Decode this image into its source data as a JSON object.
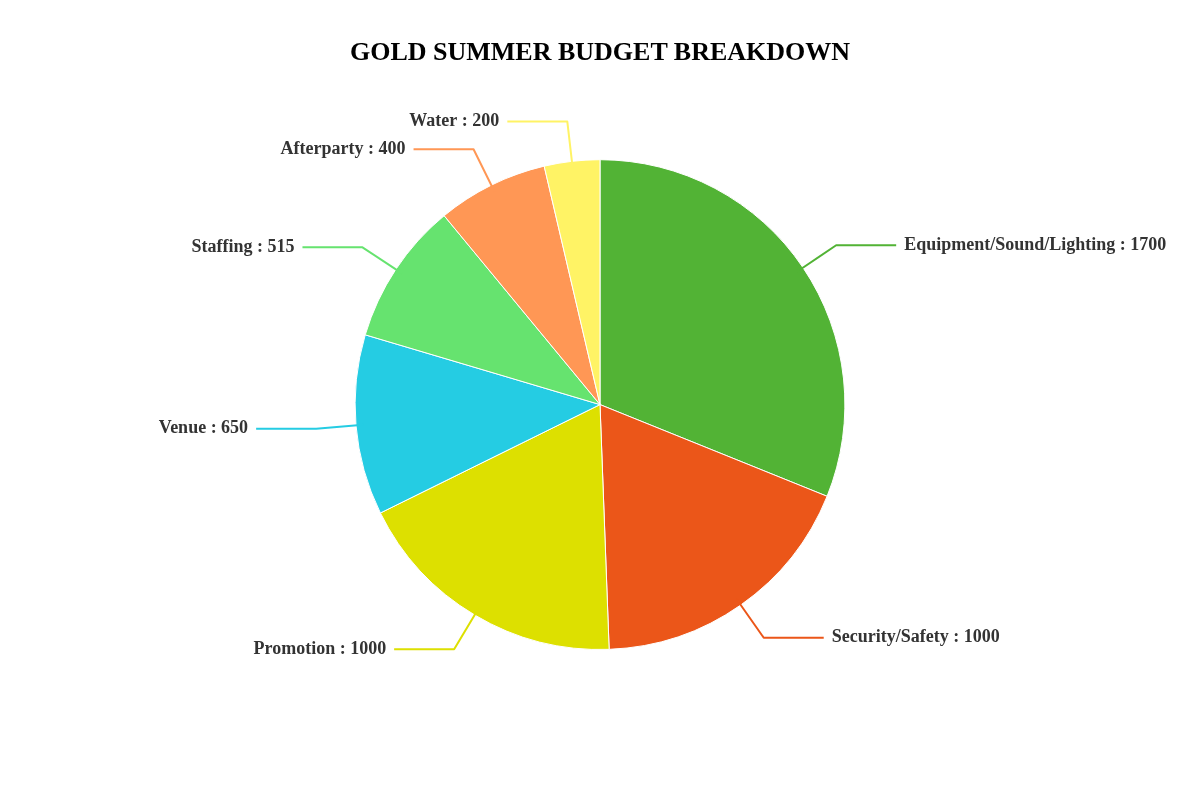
{
  "chart_data": {
    "type": "pie",
    "title": "GOLD SUMMER BUDGET BREAKDOWN",
    "categories": [
      "Equipment/Sound/Lighting",
      "Security/Safety",
      "Promotion",
      "Venue",
      "Staffing",
      "Afterparty",
      "Water"
    ],
    "values": [
      1700,
      1000,
      1000,
      650,
      515,
      400,
      200
    ],
    "colors": [
      "#52b335",
      "#eb5619",
      "#dde000",
      "#25cce3",
      "#66e36f",
      "#ff9755",
      "#fff365"
    ],
    "value_labels": [
      ": 1700",
      ": 1000",
      ": 1000",
      ": 650",
      ": 515",
      ": 400",
      ": 200"
    ],
    "legend": false
  }
}
